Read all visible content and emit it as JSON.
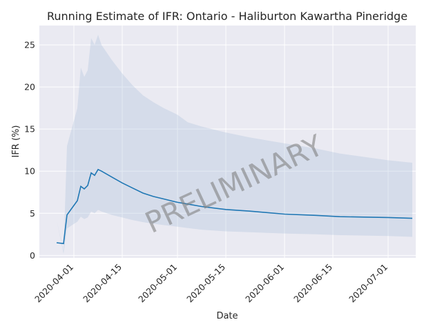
{
  "chart_data": {
    "type": "line",
    "title": "Running Estimate of IFR: Ontario - Haliburton Kawartha Pineridge",
    "xlabel": "Date",
    "ylabel": "IFR (%)",
    "watermark": "PRELIMINARY",
    "x_range": [
      "2020-03-22",
      "2020-07-09"
    ],
    "ylim": [
      -0.3,
      27.3
    ],
    "grid": true,
    "x_ticks": [
      "2020-04-01",
      "2020-04-15",
      "2020-05-01",
      "2020-05-15",
      "2020-06-01",
      "2020-06-15",
      "2020-07-01"
    ],
    "y_ticks": [
      0,
      5,
      10,
      15,
      20,
      25
    ],
    "colors": {
      "line": "#1f77b4",
      "band": "#b0c4de",
      "background": "#eaeaf2",
      "grid": "#ffffff"
    },
    "series": [
      {
        "x": [
          "2020-03-27",
          "2020-03-29",
          "2020-03-30",
          "2020-04-02",
          "2020-04-03",
          "2020-04-04",
          "2020-04-05",
          "2020-04-06",
          "2020-04-07",
          "2020-04-08",
          "2020-04-09",
          "2020-04-12",
          "2020-04-15",
          "2020-04-18",
          "2020-04-21",
          "2020-04-24",
          "2020-04-27",
          "2020-05-01",
          "2020-05-04",
          "2020-05-08",
          "2020-05-15",
          "2020-05-22",
          "2020-06-01",
          "2020-06-10",
          "2020-06-17",
          "2020-06-24",
          "2020-07-01",
          "2020-07-08"
        ],
        "values": [
          1.5,
          1.4,
          4.8,
          6.5,
          8.2,
          7.9,
          8.3,
          9.8,
          9.5,
          10.2,
          10.0,
          9.3,
          8.6,
          8.0,
          7.4,
          7.0,
          6.7,
          6.3,
          6.1,
          5.8,
          5.45,
          5.25,
          4.9,
          4.75,
          4.6,
          4.55,
          4.5,
          4.4
        ],
        "lower": [
          4.2,
          0.2,
          3.2,
          4.0,
          4.6,
          4.3,
          4.5,
          5.2,
          5.0,
          5.4,
          5.2,
          4.8,
          4.5,
          4.2,
          3.95,
          3.75,
          3.6,
          3.4,
          3.25,
          3.05,
          2.85,
          2.75,
          2.6,
          2.5,
          2.4,
          2.35,
          2.3,
          2.2
        ],
        "upper": [
          4.2,
          0.5,
          13.0,
          17.5,
          22.3,
          21.2,
          22.0,
          25.8,
          25.0,
          26.2,
          25.0,
          23.2,
          21.6,
          20.2,
          19.0,
          18.2,
          17.5,
          16.7,
          15.8,
          15.3,
          14.6,
          14.0,
          13.3,
          12.7,
          12.1,
          11.7,
          11.3,
          11.0
        ]
      }
    ]
  }
}
